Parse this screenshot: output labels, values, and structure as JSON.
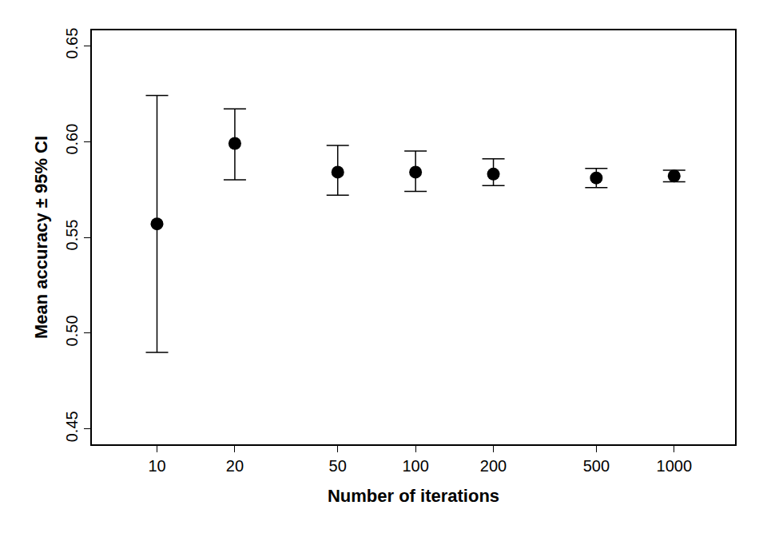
{
  "chart_data": {
    "type": "scatter",
    "x_label": "Number of iterations",
    "y_label": "Mean accuracy ± 95% CI",
    "x": [
      10,
      20,
      50,
      100,
      200,
      500,
      1000
    ],
    "values": [
      0.557,
      0.599,
      0.584,
      0.584,
      0.583,
      0.581,
      0.582
    ],
    "ci_low": [
      0.49,
      0.58,
      0.572,
      0.574,
      0.577,
      0.576,
      0.579
    ],
    "ci_high": [
      0.624,
      0.617,
      0.598,
      0.595,
      0.591,
      0.586,
      0.585
    ],
    "color": "#000000",
    "marker": "circle",
    "log": "x",
    "grid": false,
    "xlim": [
      5.6,
      1720
    ],
    "xticks": [
      10,
      20,
      50,
      100,
      200,
      500,
      1000
    ],
    "ylim": [
      0.442,
      0.658
    ],
    "yticks": [
      0.45,
      {
        "value": 0.5,
        "label": "0.50"
      },
      0.55,
      {
        "value": 0.6,
        "label": "0.60"
      },
      0.65
    ]
  }
}
